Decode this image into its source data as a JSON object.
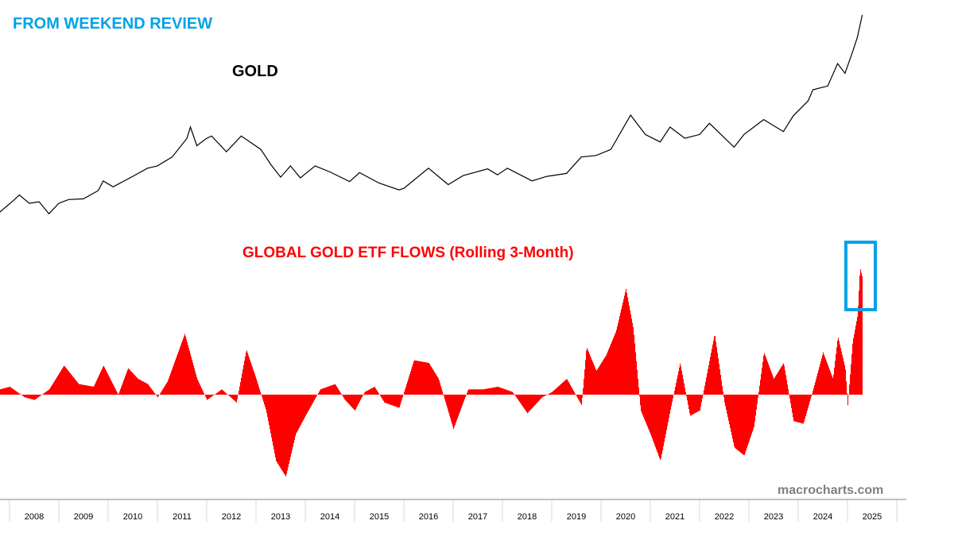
{
  "banner": "FROM WEEKEND REVIEW",
  "watermark": "macrocharts.com",
  "colors": {
    "banner": "#00a2e8",
    "gold_line": "#000000",
    "flows": "#ff0000",
    "highlight_box": "#00a2e8",
    "watermark": "#808080"
  },
  "chart_data": [
    {
      "type": "line",
      "title": "GOLD",
      "x_unit": "year",
      "xlim": [
        2007.8,
        2026
      ],
      "x_tick_labels": [
        "2008",
        "2009",
        "2010",
        "2011",
        "2012",
        "2013",
        "2014",
        "2015",
        "2016",
        "2017",
        "2018",
        "2019",
        "2020",
        "2021",
        "2022",
        "2023",
        "2024",
        "2025"
      ],
      "y_axis_shown": false,
      "grid": false,
      "points": [
        [
          2007.8,
          760
        ],
        [
          2008.1,
          930
        ],
        [
          2008.2,
          990
        ],
        [
          2008.4,
          880
        ],
        [
          2008.6,
          900
        ],
        [
          2008.8,
          740
        ],
        [
          2009.0,
          880
        ],
        [
          2009.2,
          930
        ],
        [
          2009.5,
          940
        ],
        [
          2009.8,
          1050
        ],
        [
          2009.9,
          1180
        ],
        [
          2010.1,
          1100
        ],
        [
          2010.5,
          1240
        ],
        [
          2010.8,
          1350
        ],
        [
          2011.0,
          1380
        ],
        [
          2011.3,
          1500
        ],
        [
          2011.6,
          1750
        ],
        [
          2011.67,
          1900
        ],
        [
          2011.8,
          1650
        ],
        [
          2012.0,
          1750
        ],
        [
          2012.1,
          1780
        ],
        [
          2012.4,
          1570
        ],
        [
          2012.7,
          1780
        ],
        [
          2012.9,
          1690
        ],
        [
          2013.1,
          1600
        ],
        [
          2013.3,
          1400
        ],
        [
          2013.5,
          1230
        ],
        [
          2013.7,
          1380
        ],
        [
          2013.9,
          1220
        ],
        [
          2014.2,
          1380
        ],
        [
          2014.5,
          1300
        ],
        [
          2014.9,
          1170
        ],
        [
          2015.1,
          1290
        ],
        [
          2015.5,
          1150
        ],
        [
          2015.9,
          1060
        ],
        [
          2016.0,
          1080
        ],
        [
          2016.5,
          1350
        ],
        [
          2016.9,
          1130
        ],
        [
          2017.2,
          1250
        ],
        [
          2017.7,
          1340
        ],
        [
          2017.9,
          1260
        ],
        [
          2018.1,
          1350
        ],
        [
          2018.6,
          1180
        ],
        [
          2018.9,
          1240
        ],
        [
          2019.3,
          1280
        ],
        [
          2019.6,
          1500
        ],
        [
          2019.9,
          1520
        ],
        [
          2020.2,
          1600
        ],
        [
          2020.6,
          2060
        ],
        [
          2020.9,
          1800
        ],
        [
          2021.2,
          1700
        ],
        [
          2021.4,
          1900
        ],
        [
          2021.7,
          1750
        ],
        [
          2022.0,
          1800
        ],
        [
          2022.2,
          1950
        ],
        [
          2022.7,
          1630
        ],
        [
          2022.9,
          1800
        ],
        [
          2023.1,
          1900
        ],
        [
          2023.3,
          2000
        ],
        [
          2023.7,
          1840
        ],
        [
          2023.9,
          2050
        ],
        [
          2024.2,
          2250
        ],
        [
          2024.3,
          2400
        ],
        [
          2024.6,
          2450
        ],
        [
          2024.8,
          2750
        ],
        [
          2024.95,
          2620
        ],
        [
          2025.1,
          2900
        ],
        [
          2025.2,
          3100
        ],
        [
          2025.3,
          3400
        ]
      ]
    },
    {
      "type": "bar",
      "title": "GLOBAL GOLD ETF FLOWS (Rolling 3-Month)",
      "x_unit": "year",
      "y_axis_shown": false,
      "grid": false,
      "annotation": "box highlighting latest 2025 spike",
      "points": [
        [
          2007.8,
          20
        ],
        [
          2008.0,
          30
        ],
        [
          2008.3,
          -10
        ],
        [
          2008.5,
          -20
        ],
        [
          2008.8,
          20
        ],
        [
          2009.1,
          110
        ],
        [
          2009.4,
          40
        ],
        [
          2009.7,
          30
        ],
        [
          2009.9,
          110
        ],
        [
          2010.2,
          0
        ],
        [
          2010.4,
          100
        ],
        [
          2010.6,
          60
        ],
        [
          2010.8,
          40
        ],
        [
          2011.0,
          -10
        ],
        [
          2011.2,
          50
        ],
        [
          2011.55,
          230
        ],
        [
          2011.8,
          60
        ],
        [
          2012.0,
          -20
        ],
        [
          2012.3,
          20
        ],
        [
          2012.6,
          -30
        ],
        [
          2012.8,
          170
        ],
        [
          2013.0,
          60
        ],
        [
          2013.2,
          -60
        ],
        [
          2013.4,
          -250
        ],
        [
          2013.6,
          -310
        ],
        [
          2013.8,
          -150
        ],
        [
          2014.0,
          -80
        ],
        [
          2014.3,
          20
        ],
        [
          2014.6,
          40
        ],
        [
          2014.8,
          -20
        ],
        [
          2015.0,
          -60
        ],
        [
          2015.2,
          10
        ],
        [
          2015.4,
          30
        ],
        [
          2015.6,
          -30
        ],
        [
          2015.9,
          -50
        ],
        [
          2016.2,
          130
        ],
        [
          2016.5,
          120
        ],
        [
          2016.7,
          60
        ],
        [
          2017.0,
          -130
        ],
        [
          2017.3,
          20
        ],
        [
          2017.6,
          20
        ],
        [
          2017.9,
          30
        ],
        [
          2018.2,
          10
        ],
        [
          2018.5,
          -70
        ],
        [
          2018.8,
          -10
        ],
        [
          2019.0,
          10
        ],
        [
          2019.3,
          60
        ],
        [
          2019.6,
          -40
        ],
        [
          2019.7,
          180
        ],
        [
          2019.9,
          90
        ],
        [
          2020.1,
          150
        ],
        [
          2020.3,
          240
        ],
        [
          2020.5,
          400
        ],
        [
          2020.65,
          250
        ],
        [
          2020.8,
          -60
        ],
        [
          2021.0,
          -150
        ],
        [
          2021.2,
          -250
        ],
        [
          2021.4,
          -60
        ],
        [
          2021.6,
          120
        ],
        [
          2021.8,
          -80
        ],
        [
          2022.0,
          -60
        ],
        [
          2022.3,
          230
        ],
        [
          2022.5,
          -30
        ],
        [
          2022.7,
          -200
        ],
        [
          2022.9,
          -230
        ],
        [
          2023.1,
          -120
        ],
        [
          2023.3,
          160
        ],
        [
          2023.5,
          60
        ],
        [
          2023.7,
          120
        ],
        [
          2023.9,
          -100
        ],
        [
          2024.1,
          -110
        ],
        [
          2024.3,
          20
        ],
        [
          2024.5,
          160
        ],
        [
          2024.7,
          60
        ],
        [
          2024.8,
          220
        ],
        [
          2024.95,
          100
        ],
        [
          2025.0,
          -40
        ],
        [
          2025.1,
          200
        ],
        [
          2025.2,
          300
        ],
        [
          2025.25,
          480
        ],
        [
          2025.3,
          440
        ]
      ]
    }
  ]
}
